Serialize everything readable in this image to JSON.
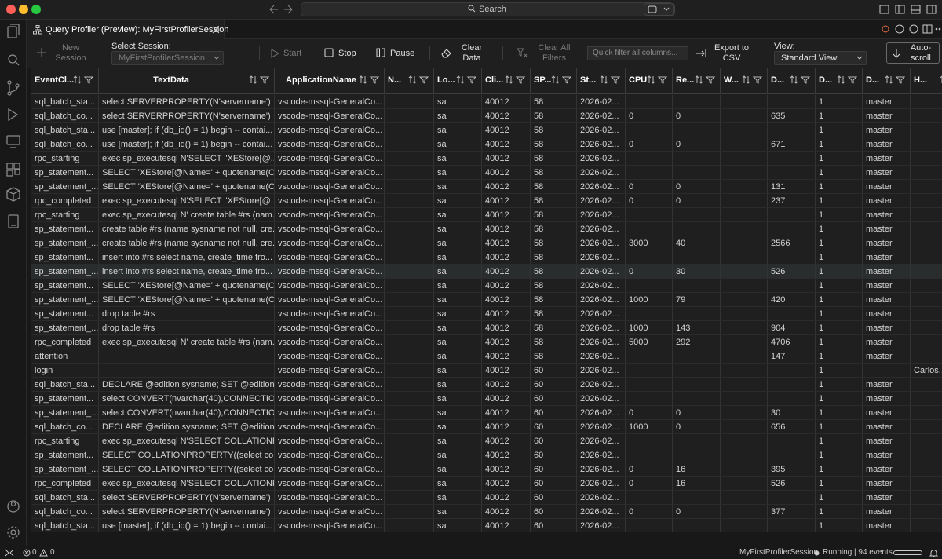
{
  "window": {
    "search": "Search"
  },
  "tab": {
    "title": "Query Profiler (Preview): MyFirstProfilerSession"
  },
  "toolbar": {
    "new_session": "New Session",
    "select_session_label": "Select Session:",
    "session_value": "MyFirstProfilerSession",
    "start": "Start",
    "stop": "Stop",
    "pause": "Pause",
    "clear_data": "Clear Data",
    "clear_all_filters": "Clear All Filters",
    "filter_placeholder": "Quick filter all columns...",
    "export": "Export to CSV",
    "view_label": "View:",
    "view_value": "Standard View",
    "autoscroll": "Auto-scroll"
  },
  "table": {
    "columns": [
      "EventCl...",
      "TextData",
      "ApplicationName",
      "N...",
      "Lo...",
      "Cli...",
      "SP...",
      "St...",
      "CPU",
      "Re...",
      "W...",
      "D...",
      "D...",
      "D...",
      "H..."
    ],
    "rows": [
      [
        "sql_batch_sta...",
        "select SERVERPROPERTY(N'servername')",
        "vscode-mssql-GeneralCo...",
        null,
        "sa",
        40012,
        58,
        "2026-02...",
        null,
        null,
        null,
        null,
        1,
        "master",
        null
      ],
      [
        "sql_batch_co...",
        "select SERVERPROPERTY(N'servername')",
        "vscode-mssql-GeneralCo...",
        null,
        "sa",
        40012,
        58,
        "2026-02...",
        0,
        0,
        null,
        635,
        1,
        "master",
        null
      ],
      [
        "sql_batch_sta...",
        "use [master]; if (db_id() = 1) begin -- contai...",
        "vscode-mssql-GeneralCo...",
        null,
        "sa",
        40012,
        58,
        "2026-02...",
        null,
        null,
        null,
        null,
        1,
        "master",
        null
      ],
      [
        "sql_batch_co...",
        "use [master]; if (db_id() = 1) begin -- contai...",
        "vscode-mssql-GeneralCo...",
        null,
        "sa",
        40012,
        58,
        "2026-02...",
        0,
        0,
        null,
        671,
        1,
        "master",
        null
      ],
      [
        "rpc_starting",
        "exec sp_executesql N'SELECT ''XEStore[@...",
        "vscode-mssql-GeneralCo...",
        null,
        "sa",
        40012,
        58,
        "2026-02...",
        null,
        null,
        null,
        null,
        1,
        "master",
        null
      ],
      [
        "sp_statement...",
        "SELECT 'XEStore[@Name=' + quotename(C...",
        "vscode-mssql-GeneralCo...",
        null,
        "sa",
        40012,
        58,
        "2026-02...",
        null,
        null,
        null,
        null,
        1,
        "master",
        null
      ],
      [
        "sp_statement_...",
        "SELECT 'XEStore[@Name=' + quotename(C...",
        "vscode-mssql-GeneralCo...",
        null,
        "sa",
        40012,
        58,
        "2026-02...",
        0,
        0,
        null,
        131,
        1,
        "master",
        null
      ],
      [
        "rpc_completed",
        "exec sp_executesql N'SELECT ''XEStore[@...",
        "vscode-mssql-GeneralCo...",
        null,
        "sa",
        40012,
        58,
        "2026-02...",
        0,
        0,
        null,
        237,
        1,
        "master",
        null
      ],
      [
        "rpc_starting",
        "exec sp_executesql N' create table #rs (nam...",
        "vscode-mssql-GeneralCo...",
        null,
        "sa",
        40012,
        58,
        "2026-02...",
        null,
        null,
        null,
        null,
        1,
        "master",
        null
      ],
      [
        "sp_statement...",
        "create table #rs (name sysname not null, cre...",
        "vscode-mssql-GeneralCo...",
        null,
        "sa",
        40012,
        58,
        "2026-02...",
        null,
        null,
        null,
        null,
        1,
        "master",
        null
      ],
      [
        "sp_statement_...",
        "create table #rs (name sysname not null, cre...",
        "vscode-mssql-GeneralCo...",
        null,
        "sa",
        40012,
        58,
        "2026-02...",
        3000,
        40,
        null,
        2566,
        1,
        "master",
        null
      ],
      [
        "sp_statement...",
        "insert into #rs select name, create_time fro...",
        "vscode-mssql-GeneralCo...",
        null,
        "sa",
        40012,
        58,
        "2026-02...",
        null,
        null,
        null,
        null,
        1,
        "master",
        null
      ],
      [
        "sp_statement_...",
        "insert into #rs select name, create_time fro...",
        "vscode-mssql-GeneralCo...",
        null,
        "sa",
        40012,
        58,
        "2026-02...",
        0,
        30,
        null,
        526,
        1,
        "master",
        null
      ],
      [
        "sp_statement...",
        "SELECT 'XEStore[@Name=' + quotename(C...",
        "vscode-mssql-GeneralCo...",
        null,
        "sa",
        40012,
        58,
        "2026-02...",
        null,
        null,
        null,
        null,
        1,
        "master",
        null
      ],
      [
        "sp_statement_...",
        "SELECT 'XEStore[@Name=' + quotename(C...",
        "vscode-mssql-GeneralCo...",
        null,
        "sa",
        40012,
        58,
        "2026-02...",
        1000,
        79,
        null,
        420,
        1,
        "master",
        null
      ],
      [
        "sp_statement...",
        "drop table #rs",
        "vscode-mssql-GeneralCo...",
        null,
        "sa",
        40012,
        58,
        "2026-02...",
        null,
        null,
        null,
        null,
        1,
        "master",
        null
      ],
      [
        "sp_statement_...",
        "drop table #rs",
        "vscode-mssql-GeneralCo...",
        null,
        "sa",
        40012,
        58,
        "2026-02...",
        1000,
        143,
        null,
        904,
        1,
        "master",
        null
      ],
      [
        "rpc_completed",
        "exec sp_executesql N' create table #rs (nam...",
        "vscode-mssql-GeneralCo...",
        null,
        "sa",
        40012,
        58,
        "2026-02...",
        5000,
        292,
        null,
        4706,
        1,
        "master",
        null
      ],
      [
        "attention",
        null,
        "vscode-mssql-GeneralCo...",
        null,
        "sa",
        40012,
        58,
        "2026-02...",
        null,
        null,
        null,
        147,
        1,
        "master",
        null
      ],
      [
        "login",
        null,
        "vscode-mssql-GeneralCo...",
        null,
        "sa",
        40012,
        60,
        "2026-02...",
        null,
        null,
        null,
        null,
        1,
        null,
        "Carlos..."
      ],
      [
        "sql_batch_sta...",
        "DECLARE @edition sysname; SET @edition ...",
        "vscode-mssql-GeneralCo...",
        null,
        "sa",
        40012,
        60,
        "2026-02...",
        null,
        null,
        null,
        null,
        1,
        "master",
        null
      ],
      [
        "sp_statement...",
        "select CONVERT(nvarchar(40),CONNECTIO...",
        "vscode-mssql-GeneralCo...",
        null,
        "sa",
        40012,
        60,
        "2026-02...",
        null,
        null,
        null,
        null,
        1,
        "master",
        null
      ],
      [
        "sp_statement_...",
        "select CONVERT(nvarchar(40),CONNECTIO...",
        "vscode-mssql-GeneralCo...",
        null,
        "sa",
        40012,
        60,
        "2026-02...",
        0,
        0,
        null,
        30,
        1,
        "master",
        null
      ],
      [
        "sql_batch_co...",
        "DECLARE @edition sysname; SET @edition ...",
        "vscode-mssql-GeneralCo...",
        null,
        "sa",
        40012,
        60,
        "2026-02...",
        1000,
        0,
        null,
        656,
        1,
        "master",
        null
      ],
      [
        "rpc_starting",
        "exec sp_executesql N'SELECT COLLATIONP...",
        "vscode-mssql-GeneralCo...",
        null,
        "sa",
        40012,
        60,
        "2026-02...",
        null,
        null,
        null,
        null,
        1,
        "master",
        null
      ],
      [
        "sp_statement...",
        "SELECT COLLATIONPROPERTY((select coll...",
        "vscode-mssql-GeneralCo...",
        null,
        "sa",
        40012,
        60,
        "2026-02...",
        null,
        null,
        null,
        null,
        1,
        "master",
        null
      ],
      [
        "sp_statement_...",
        "SELECT COLLATIONPROPERTY((select coll...",
        "vscode-mssql-GeneralCo...",
        null,
        "sa",
        40012,
        60,
        "2026-02...",
        0,
        16,
        null,
        395,
        1,
        "master",
        null
      ],
      [
        "rpc_completed",
        "exec sp_executesql N'SELECT COLLATIONP...",
        "vscode-mssql-GeneralCo...",
        null,
        "sa",
        40012,
        60,
        "2026-02...",
        0,
        16,
        null,
        526,
        1,
        "master",
        null
      ],
      [
        "sql_batch_sta...",
        "select SERVERPROPERTY(N'servername')",
        "vscode-mssql-GeneralCo...",
        null,
        "sa",
        40012,
        60,
        "2026-02...",
        null,
        null,
        null,
        null,
        1,
        "master",
        null
      ],
      [
        "sql_batch_co...",
        "select SERVERPROPERTY(N'servername')",
        "vscode-mssql-GeneralCo...",
        null,
        "sa",
        40012,
        60,
        "2026-02...",
        0,
        0,
        null,
        377,
        1,
        "master",
        null
      ],
      [
        "sql_batch_sta...",
        "use [master]; if (db_id() = 1) begin -- contai...",
        "vscode-mssql-GeneralCo...",
        null,
        "sa",
        40012,
        60,
        "2026-02...",
        null,
        null,
        null,
        null,
        1,
        "master",
        null
      ]
    ]
  },
  "status": {
    "errors": "0",
    "warnings": "0",
    "session": "MyFirstProfilerSession",
    "state": "Running | 94 events"
  }
}
